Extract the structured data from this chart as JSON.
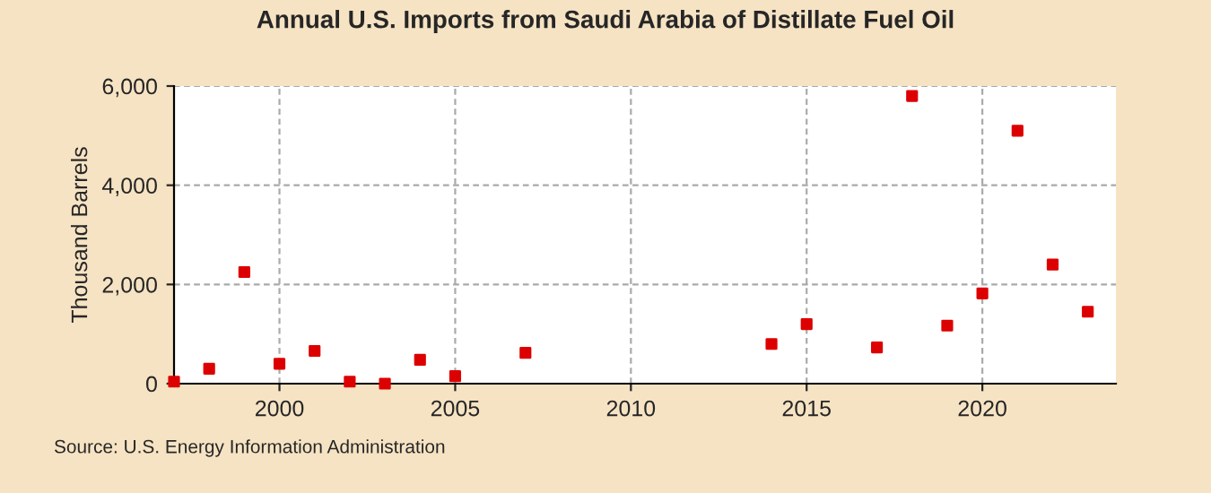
{
  "chart_data": {
    "type": "scatter",
    "title": "Annual U.S. Imports from Saudi Arabia of Distillate Fuel Oil",
    "ylabel": "Thousand Barrels",
    "x": [
      1997,
      1998,
      1999,
      2000,
      2001,
      2002,
      2003,
      2004,
      2005,
      2007,
      2014,
      2015,
      2017,
      2018,
      2019,
      2020,
      2021,
      2022,
      2023
    ],
    "series": [
      {
        "color": "#dd0000",
        "values": [
          40,
          300,
          2250,
          400,
          660,
          40,
          0,
          480,
          150,
          620,
          800,
          1200,
          730,
          5800,
          1170,
          1820,
          5100,
          2400,
          1450
        ]
      }
    ],
    "xlim": [
      1997,
      2023.8
    ],
    "xticks": [
      2000,
      2005,
      2010,
      2015,
      2020
    ],
    "ylim": [
      0,
      6000
    ],
    "yticks": [
      {
        "value": 0,
        "label": "0"
      },
      {
        "value": 2000,
        "label": "2,000"
      },
      {
        "value": 4000,
        "label": "4,000"
      },
      {
        "value": 6000,
        "label": "6,000"
      }
    ],
    "grid": true,
    "marker": "square",
    "annotations": [
      "Source: U.S. Energy Information Administration"
    ]
  }
}
